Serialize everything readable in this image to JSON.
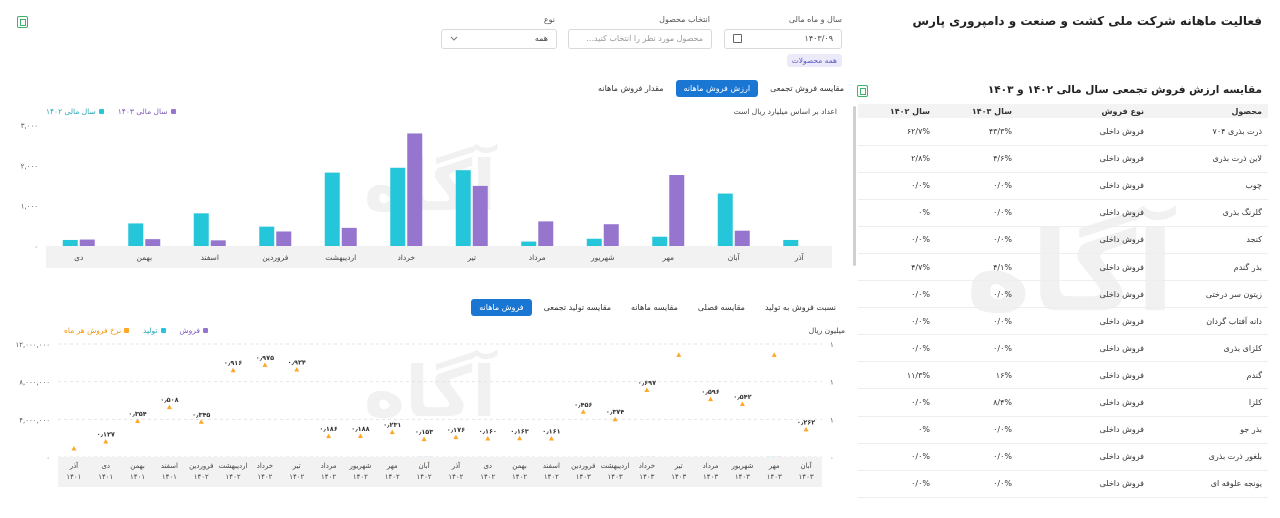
{
  "header": {
    "title": "فعالیت ماهانه شرکت ملی کشت و صنعت و دامپروری پارس",
    "icon": "excel-export-icon"
  },
  "filters": {
    "period_label": "سال و ماه مالی",
    "period_value": "۱۴۰۳/۰۹",
    "product_label": "انتخاب محصول",
    "product_placeholder": "محصول مورد نظر را انتخاب کنید...",
    "type_label": "نوع",
    "type_value": "همه",
    "chip": "همه محصولات"
  },
  "chart1": {
    "tabs": [
      "مقدار فروش ماهانه",
      "ارزش فروش ماهانه",
      "مقایسه فروش تجمعی"
    ],
    "active_tab": 1,
    "note": "اعداد بر اساس میلیارد ریال است",
    "legend": [
      "سال مالی ۱۴۰۳",
      "سال مالی ۱۴۰۲"
    ],
    "colors": {
      "y1403": "#9575cd",
      "y1402": "#26c6da"
    }
  },
  "chart2": {
    "tabs": [
      "فروش ماهانه",
      "مقایسه تولید تجمعی",
      "مقایسه ماهانه",
      "مقایسه فصلی",
      "نسبت فروش به تولید"
    ],
    "active_tab": 0,
    "unit": "میلیون ریال",
    "legend": [
      "فروش",
      "تولید",
      "نرخ فروش هر ماه"
    ],
    "colors": {
      "sales": "#9575cd",
      "production": "#26c6da",
      "rate": "#ffa726"
    }
  },
  "chart_data": [
    {
      "type": "bar",
      "title": "",
      "ylabel": "",
      "ylim": [
        0,
        3000
      ],
      "yticks": [
        "۰",
        "۱,۰۰۰",
        "۲,۰۰۰",
        "۳,۰۰۰"
      ],
      "categories": [
        "آذر",
        "آبان",
        "مهر",
        "شهریور",
        "مرداد",
        "تیر",
        "خرداد",
        "اردیبهشت",
        "فروردین",
        "اسفند",
        "بهمن",
        "دی"
      ],
      "series": [
        {
          "name": "سال مالی ۱۴۰۲",
          "values": [
            150,
            1300,
            230,
            180,
            110,
            1880,
            1940,
            1820,
            480,
            810,
            560,
            150
          ]
        },
        {
          "name": "سال مالی ۱۴۰۳",
          "values": [
            0,
            380,
            1760,
            540,
            610,
            1490,
            2790,
            450,
            360,
            140,
            170,
            160
          ]
        }
      ],
      "legend_position": "top-left",
      "grid": false
    },
    {
      "type": "bar",
      "title": "",
      "ylabel": "میلیون ریال",
      "ylim": [
        0,
        12000000
      ],
      "yticks": [
        "۰",
        "۴,۰۰۰,۰۰۰",
        "۸,۰۰۰,۰۰۰",
        "۱۲,۰۰۰,۰۰۰"
      ],
      "y2ticks": [
        "۰",
        "۱",
        "۱",
        "۱"
      ],
      "categories": [
        [
          "آبان",
          "۱۴۰۳"
        ],
        [
          "مهر",
          "۱۴۰۳"
        ],
        [
          "شهریور",
          "۱۴۰۳"
        ],
        [
          "مرداد",
          "۱۴۰۳"
        ],
        [
          "تیر",
          "۱۴۰۳"
        ],
        [
          "خرداد",
          "۱۴۰۳"
        ],
        [
          "اردیبهشت",
          "۱۴۰۳"
        ],
        [
          "فروردین",
          "۱۴۰۳"
        ],
        [
          "اسفند",
          "۱۴۰۲"
        ],
        [
          "بهمن",
          "۱۴۰۲"
        ],
        [
          "دی",
          "۱۴۰۲"
        ],
        [
          "آذر",
          "۱۴۰۲"
        ],
        [
          "آبان",
          "۱۴۰۲"
        ],
        [
          "مهر",
          "۱۴۰۲"
        ],
        [
          "شهریور",
          "۱۴۰۲"
        ],
        [
          "مرداد",
          "۱۴۰۲"
        ],
        [
          "تیر",
          "۱۴۰۲"
        ],
        [
          "خرداد",
          "۱۴۰۲"
        ],
        [
          "اردیبهشت",
          "۱۴۰۲"
        ],
        [
          "فروردین",
          "۱۴۰۲"
        ],
        [
          "اسفند",
          "۱۴۰۱"
        ],
        [
          "بهمن",
          "۱۴۰۱"
        ],
        [
          "دی",
          "۱۴۰۱"
        ],
        [
          "آذر",
          "۱۴۰۱"
        ]
      ],
      "series": [
        {
          "name": "فروش",
          "values": [
            1550,
            12300,
            1000,
            1000,
            1300,
            6800,
            400,
            700,
            1200,
            1600,
            1400,
            1000,
            11500,
            1900,
            1000,
            1000,
            2000,
            2000,
            2000,
            1500,
            1400,
            1600,
            1200,
            0
          ]
        },
        {
          "name": "تولید",
          "values": [
            1500,
            12300,
            1000,
            1000,
            1300,
            6800,
            400,
            700,
            1200,
            1600,
            1400,
            1000,
            11500,
            1900,
            1000,
            1000,
            2000,
            2000,
            2000,
            1500,
            1400,
            1600,
            1200,
            0
          ]
        },
        {
          "name": "نرخ فروش هر ماه",
          "values": [
            0.262,
            1.086,
            0.542,
            0.596,
            1.086,
            0.697,
            0.374,
            0.456,
            0.161,
            0.163,
            0.16,
            0.176,
            0.153,
            0.231,
            0.188,
            0.186,
            0.924,
            0.975,
            0.916,
            0.345,
            0.508,
            0.354,
            0.127,
            0.05
          ]
        }
      ],
      "rate_labels": [
        "۰٫۲۶۲",
        "۱٫۰۸۶",
        "۰٫۵۴۲",
        "۰٫۵۹۶",
        "۱٫۰۸۶",
        "۰٫۶۹۷",
        "۰٫۳۷۴",
        "۰٫۴۵۶",
        "۰٫۱۶۱",
        "۰٫۱۶۳",
        "۰٫۱۶۰",
        "۰٫۱۷۶",
        "۰٫۱۵۳",
        "۰٫۲۳۱",
        "۰٫۱۸۸",
        "۰٫۱۸۶",
        "۰٫۹۲۴",
        "۰٫۹۷۵",
        "۰٫۹۱۶",
        "۰٫۳۴۵",
        "۰٫۵۰۸",
        "۰٫۳۵۴",
        "۰٫۱۲۷",
        ""
      ],
      "rate_label_hidden": [
        false,
        true,
        false,
        false,
        true,
        false,
        false,
        false,
        false,
        false,
        false,
        false,
        false,
        false,
        false,
        false,
        false,
        false,
        false,
        false,
        false,
        false,
        false,
        true
      ],
      "legend_position": "top-left",
      "grid": true
    }
  ],
  "comparison_table": {
    "title": "مقایسه ارزش فروش تجمعی سال مالی ۱۴۰۲ و ۱۴۰۳",
    "columns": [
      "محصول",
      "نوع فروش",
      "سال ۱۴۰۳",
      "سال ۱۴۰۲"
    ],
    "rows": [
      [
        "ذرت بذری ۷۰۴",
        "فروش داخلی",
        "۴۳/۳%",
        "۶۲/۷%"
      ],
      [
        "لاین ذرت بذری",
        "فروش داخلی",
        "۴/۶%",
        "۲/۸%"
      ],
      [
        "چوب",
        "فروش داخلی",
        "۰/۰%",
        "۰/۰%"
      ],
      [
        "گلرنگ بذری",
        "فروش داخلی",
        "۰/۰%",
        "۰%"
      ],
      [
        "کنجد",
        "فروش داخلی",
        "۰/۰%",
        "۰/۰%"
      ],
      [
        "بذر گندم",
        "فروش داخلی",
        "۴/۱%",
        "۴/۷%"
      ],
      [
        "زیتون سر درختی",
        "فروش داخلی",
        "۰/۰%",
        "۰/۰%"
      ],
      [
        "دانه آفتاب گردان",
        "فروش داخلی",
        "۰/۰%",
        "۰/۰%"
      ],
      [
        "کلزای بذری",
        "فروش داخلی",
        "۰/۰%",
        "۰/۰%"
      ],
      [
        "گندم",
        "فروش داخلی",
        "۱۶%",
        "۱۱/۳%"
      ],
      [
        "کلزا",
        "فروش داخلی",
        "۸/۴%",
        "۰/۰%"
      ],
      [
        "بذر جو",
        "فروش داخلی",
        "۰/۰%",
        "۰%"
      ],
      [
        "بلغور ذرت بذری",
        "فروش داخلی",
        "۰/۰%",
        "۰/۰%"
      ],
      [
        "یونجه علوفه ای",
        "فروش داخلی",
        "۰/۰%",
        "۰/۰%"
      ]
    ]
  }
}
